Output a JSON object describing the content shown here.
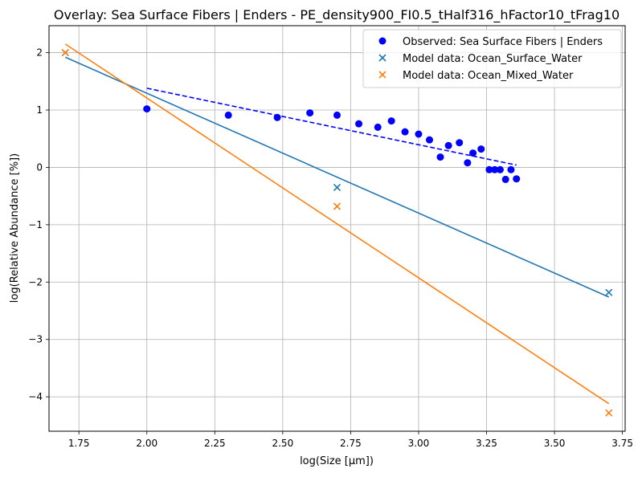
{
  "chart_data": {
    "type": "scatter",
    "title": "Overlay: Sea Surface Fibers | Enders - PE_density900_FI0.5_tHalf316_hFactor10_tFrag10",
    "xlabel": "log(Size [µm])",
    "ylabel": "log(Relative Abundance [%])",
    "xlim": [
      1.64,
      3.76
    ],
    "ylim": [
      -4.6,
      2.47
    ],
    "xticks": [
      "1.75",
      "2.00",
      "2.25",
      "2.50",
      "2.75",
      "3.00",
      "3.25",
      "3.50",
      "3.75"
    ],
    "yticks": [
      "−4",
      "−3",
      "−2",
      "−1",
      "0",
      "1",
      "2"
    ],
    "grid": true,
    "legend_position": "top-right",
    "colors": {
      "observed": "#0000ff",
      "surface": "#1f77b4",
      "mixed": "#ff7f0e"
    },
    "series": [
      {
        "name": "Observed: Sea Surface Fibers | Enders",
        "marker": "circle",
        "color": "#0000ff",
        "x": [
          2.0,
          2.3,
          2.48,
          2.6,
          2.7,
          2.78,
          2.85,
          2.9,
          2.95,
          3.0,
          3.04,
          3.08,
          3.11,
          3.15,
          3.18,
          3.2,
          3.23,
          3.26,
          3.28,
          3.3,
          3.32,
          3.34,
          3.36
        ],
        "y": [
          1.02,
          0.91,
          0.87,
          0.95,
          0.91,
          0.76,
          0.7,
          0.81,
          0.62,
          0.58,
          0.48,
          0.18,
          0.38,
          0.43,
          0.08,
          0.25,
          0.32,
          -0.04,
          -0.04,
          -0.04,
          -0.21,
          -0.04,
          -0.2
        ]
      },
      {
        "name": "Model data: Ocean_Surface_Water",
        "marker": "x",
        "color": "#1f77b4",
        "x": [
          1.7,
          2.7,
          3.7
        ],
        "y": [
          2.0,
          -0.35,
          -2.18
        ]
      },
      {
        "name": "Model data: Ocean_Mixed_Water",
        "marker": "x",
        "color": "#ff7f0e",
        "x": [
          1.7,
          2.7,
          3.7
        ],
        "y": [
          2.0,
          -0.68,
          -4.28
        ]
      }
    ],
    "fit_lines": [
      {
        "series": "Observed",
        "color": "#0000ff",
        "style": "dashed",
        "x": [
          2.0,
          3.36
        ],
        "y": [
          1.38,
          0.04
        ]
      },
      {
        "series": "Ocean_Surface_Water",
        "color": "#1f77b4",
        "style": "solid",
        "x": [
          1.7,
          3.7
        ],
        "y": [
          1.92,
          -2.26
        ]
      },
      {
        "series": "Ocean_Mixed_Water",
        "color": "#ff7f0e",
        "style": "solid",
        "x": [
          1.7,
          3.7
        ],
        "y": [
          2.15,
          -4.12
        ]
      }
    ]
  }
}
